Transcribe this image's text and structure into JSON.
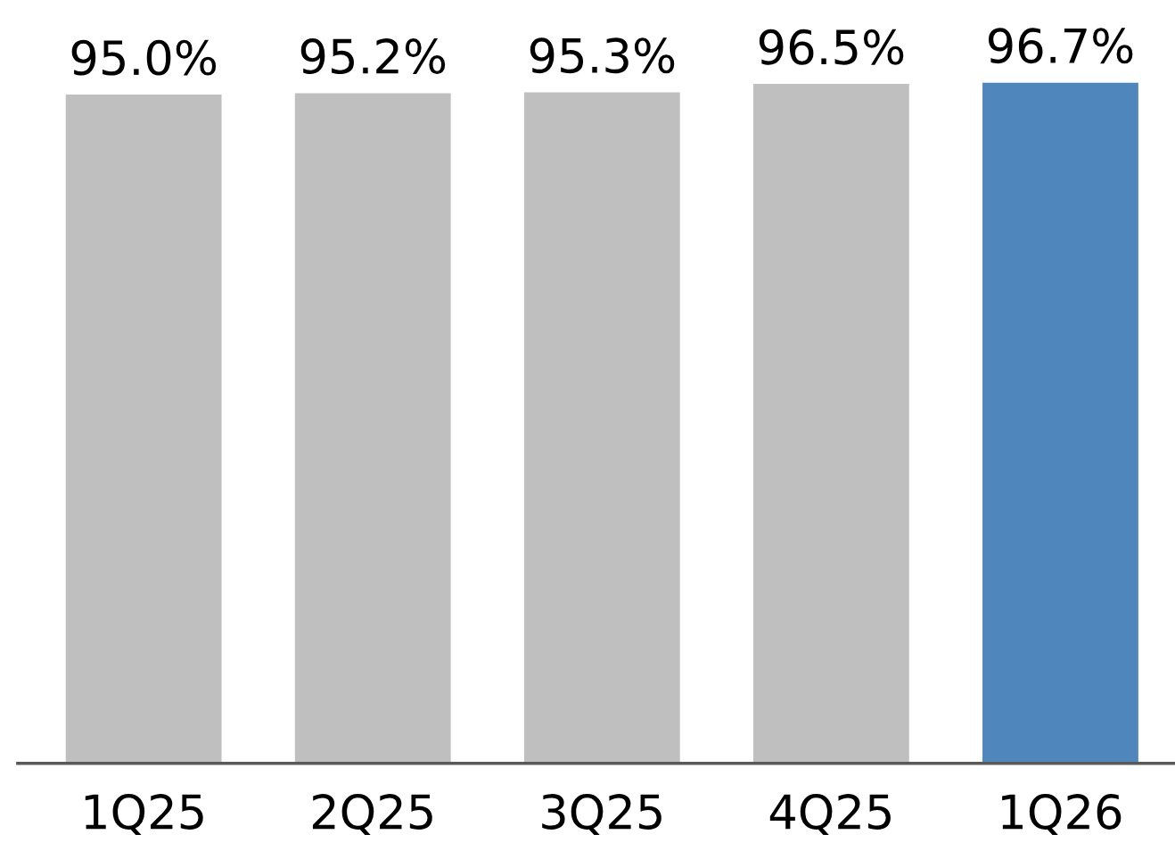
{
  "chart_data": {
    "type": "bar",
    "categories": [
      "1Q25",
      "2Q25",
      "3Q25",
      "4Q25",
      "1Q26"
    ],
    "values": [
      95.0,
      95.2,
      95.3,
      96.5,
      96.7
    ],
    "colors": [
      "#bfbfbf",
      "#bfbfbf",
      "#bfbfbf",
      "#bfbfbf",
      "#4f86bc"
    ],
    "value_labels": [
      "95.0%",
      "95.2%",
      "95.3%",
      "96.5%",
      "96.7%"
    ],
    "grid": false,
    "legend": false,
    "tick_labels": "x"
  }
}
